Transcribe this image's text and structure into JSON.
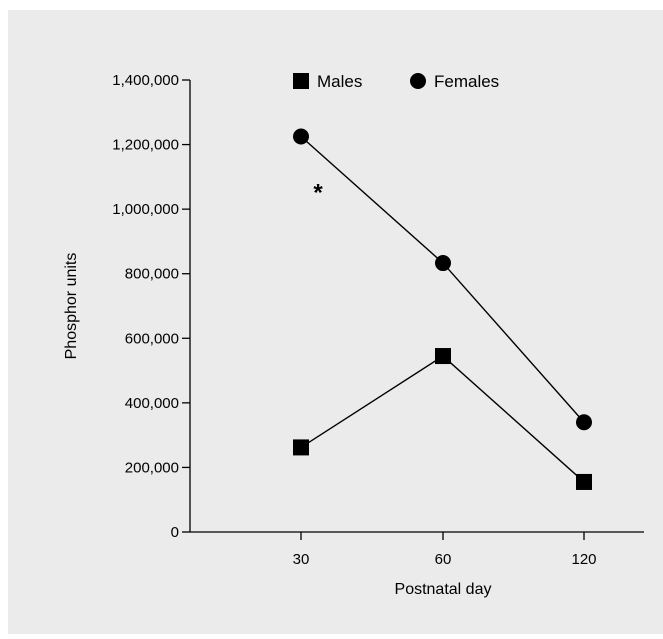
{
  "chart_data": {
    "type": "line",
    "title": "",
    "xlabel": "Postnatal day",
    "ylabel": "Phosphor units",
    "categories": [
      "30",
      "60",
      "120"
    ],
    "ylim": [
      0,
      1400000
    ],
    "yticks": [
      0,
      200000,
      400000,
      600000,
      800000,
      1000000,
      1200000,
      1400000
    ],
    "ytick_labels": [
      "0",
      "200,000",
      "400,000",
      "600,000",
      "800,000",
      "1,000,000",
      "1,200,000",
      "1,400,000"
    ],
    "grid": false,
    "legend_position": "top",
    "series": [
      {
        "name": "Males",
        "marker": "square",
        "color": "#000000",
        "values": [
          262000,
          545000,
          155000
        ]
      },
      {
        "name": "Females",
        "marker": "circle",
        "color": "#000000",
        "values": [
          1225000,
          833000,
          340000
        ]
      }
    ],
    "annotations": [
      {
        "text": "*",
        "x": "30",
        "y": 1070000
      }
    ]
  }
}
